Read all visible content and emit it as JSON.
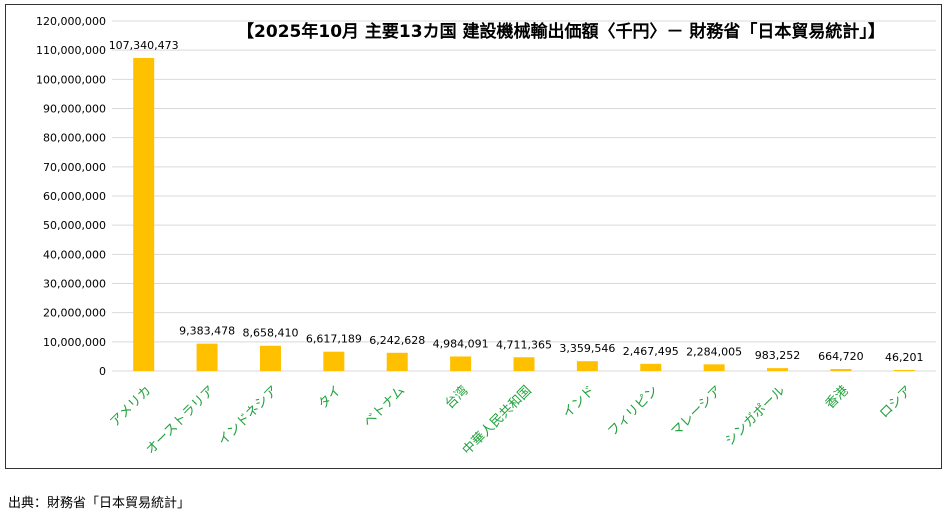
{
  "chart_data": {
    "type": "bar",
    "title": "【2025年10月 主要13カ国 建設機械輸出価額〈千円〉－ 財務省「日本貿易統計」】",
    "categories": [
      "アメリカ",
      "オーストラリア",
      "インドネシア",
      "タイ",
      "ベトナム",
      "台湾",
      "中華人民共和国",
      "インド",
      "フィリピン",
      "マレーシア",
      "シンガポール",
      "香港",
      "ロシア"
    ],
    "values": [
      107340473,
      9383478,
      8658410,
      6617189,
      6242628,
      4984091,
      4711365,
      3359546,
      2467495,
      2284005,
      983252,
      664720,
      46201
    ],
    "value_labels": [
      "107,340,473",
      "9,383,478",
      "8,658,410",
      "6,617,189",
      "6,242,628",
      "4,984,091",
      "4,711,365",
      "3,359,546",
      "2,467,495",
      "2,284,005",
      "983,252",
      "664,720",
      "46,201"
    ],
    "y_ticks": [
      0,
      10000000,
      20000000,
      30000000,
      40000000,
      50000000,
      60000000,
      70000000,
      80000000,
      90000000,
      100000000,
      110000000,
      120000000
    ],
    "y_tick_labels": [
      "0",
      "10,000,000",
      "20,000,000",
      "30,000,000",
      "40,000,000",
      "50,000,000",
      "60,000,000",
      "70,000,000",
      "80,000,000",
      "90,000,000",
      "100,000,000",
      "110,000,000",
      "120,000,000"
    ],
    "ylim": [
      0,
      120000000
    ],
    "xlabel": "",
    "ylabel": "",
    "grid": true,
    "legend": "none",
    "colors": {
      "bar": "#FFC000",
      "category_label": "#1FA13A",
      "grid": "#D9D9D9",
      "text": "#000000"
    }
  },
  "source_note": "出典：財務省「日本貿易統計」"
}
